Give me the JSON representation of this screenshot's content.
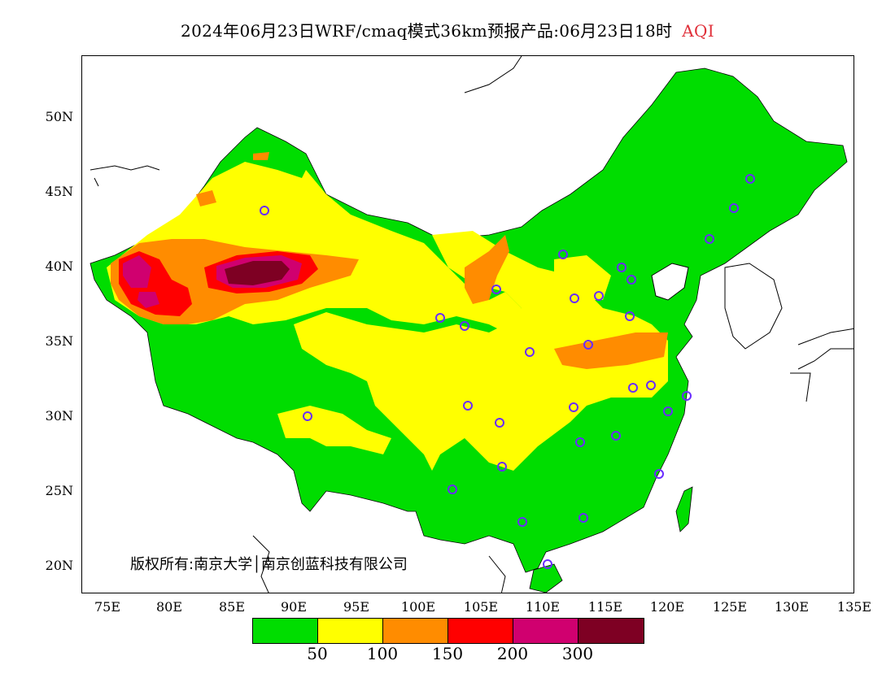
{
  "title": {
    "main": "2024年06月23日WRF/cmaq模式36km预报产品:06月23日18时",
    "variable": "AQI"
  },
  "map": {
    "lon_ticks": [
      "75E",
      "80E",
      "85E",
      "90E",
      "95E",
      "100E",
      "105E",
      "110E",
      "115E",
      "120E",
      "125E",
      "130E",
      "135E"
    ],
    "lat_ticks": [
      "50N",
      "45N",
      "40N",
      "35N",
      "30N",
      "25N",
      "20N"
    ],
    "copyright": "版权所有:南京大学│南京创蓝科技有限公司"
  },
  "legend": {
    "colors": [
      "#00dd00",
      "#ffff00",
      "#ff8c00",
      "#ff0000",
      "#d0006f",
      "#7e0023"
    ],
    "labels": [
      "50",
      "100",
      "150",
      "200",
      "300"
    ]
  }
}
